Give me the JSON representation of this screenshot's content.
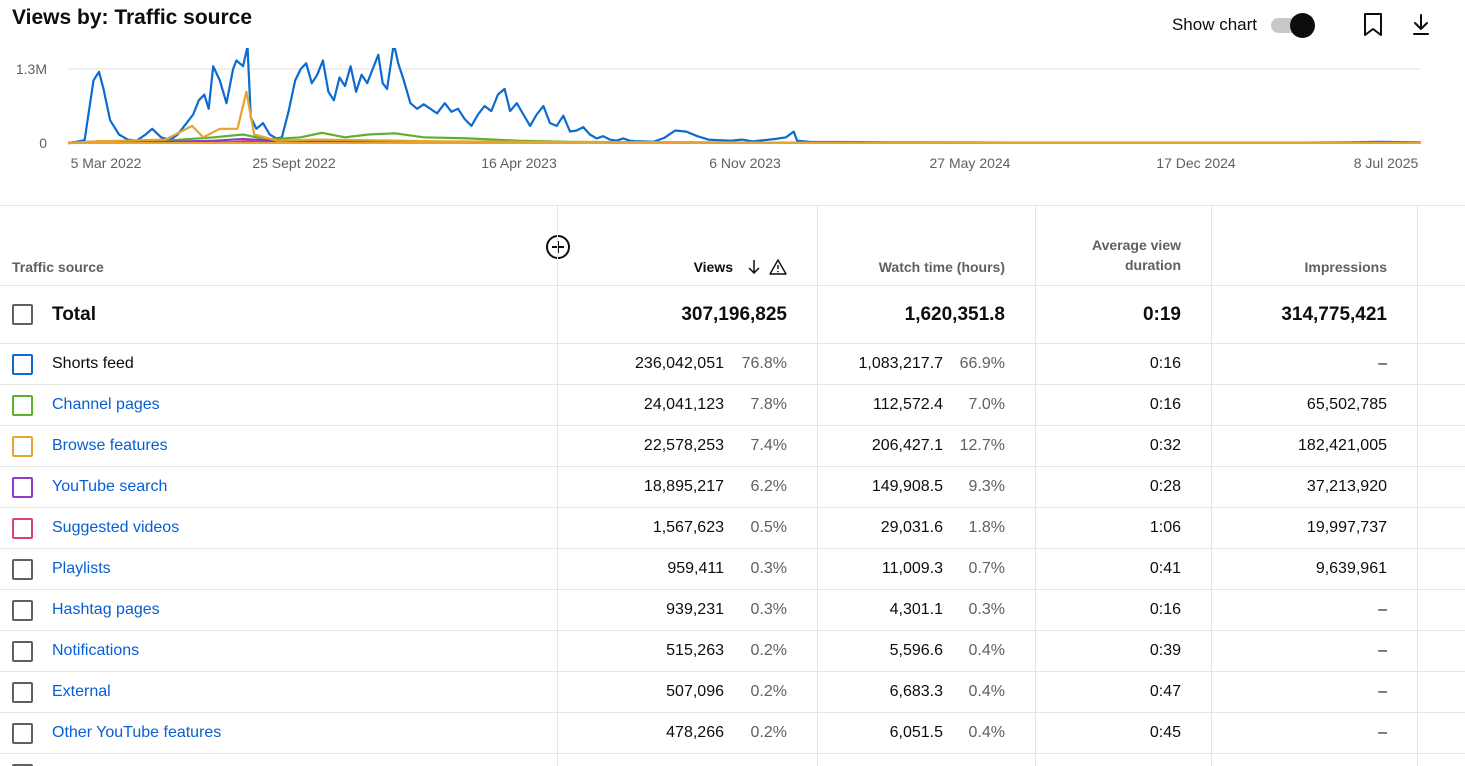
{
  "header": {
    "title": "Views by: Traffic source"
  },
  "toolbar": {
    "show_chart_label": "Show chart",
    "show_chart_on": true,
    "icons": [
      "toggle-switch",
      "bookmark-icon",
      "download-icon"
    ]
  },
  "chart_data": {
    "type": "line",
    "y_tick_labels": [
      "0",
      "1.3M"
    ],
    "x_tick_labels": [
      "5 Mar 2022",
      "25 Sept 2022",
      "16 Apr 2023",
      "6 Nov 2023",
      "27 May 2024",
      "17 Dec 2024",
      "8 Jul 2025"
    ],
    "x_range": [
      "2022-03-05",
      "2025-07-08"
    ],
    "ylim": [
      0,
      1300000
    ],
    "grid": true,
    "legend": "none",
    "series": [
      {
        "name": "Shorts feed",
        "color": "#0b6bd1",
        "points": [
          [
            "2022-03-05",
            0
          ],
          [
            "2022-03-12",
            20000
          ],
          [
            "2022-03-20",
            50000
          ],
          [
            "2022-03-28",
            1100000
          ],
          [
            "2022-04-02",
            1250000
          ],
          [
            "2022-04-06",
            950000
          ],
          [
            "2022-04-12",
            400000
          ],
          [
            "2022-04-20",
            150000
          ],
          [
            "2022-04-28",
            60000
          ],
          [
            "2022-05-06",
            40000
          ],
          [
            "2022-05-14",
            150000
          ],
          [
            "2022-05-20",
            250000
          ],
          [
            "2022-05-28",
            100000
          ],
          [
            "2022-06-05",
            50000
          ],
          [
            "2022-06-12",
            150000
          ],
          [
            "2022-06-20",
            350000
          ],
          [
            "2022-06-26",
            500000
          ],
          [
            "2022-07-01",
            750000
          ],
          [
            "2022-07-06",
            850000
          ],
          [
            "2022-07-10",
            600000
          ],
          [
            "2022-07-14",
            1350000
          ],
          [
            "2022-07-20",
            1100000
          ],
          [
            "2022-07-26",
            700000
          ],
          [
            "2022-08-01",
            1300000
          ],
          [
            "2022-08-04",
            1450000
          ],
          [
            "2022-08-10",
            1350000
          ],
          [
            "2022-08-14",
            1700000
          ],
          [
            "2022-08-17",
            450000
          ],
          [
            "2022-08-22",
            250000
          ],
          [
            "2022-08-28",
            350000
          ],
          [
            "2022-09-03",
            150000
          ],
          [
            "2022-09-09",
            80000
          ],
          [
            "2022-09-14",
            100000
          ],
          [
            "2022-09-20",
            550000
          ],
          [
            "2022-09-26",
            1100000
          ],
          [
            "2022-10-01",
            1300000
          ],
          [
            "2022-10-06",
            1400000
          ],
          [
            "2022-10-11",
            1050000
          ],
          [
            "2022-10-16",
            1200000
          ],
          [
            "2022-10-21",
            1450000
          ],
          [
            "2022-10-26",
            900000
          ],
          [
            "2022-10-31",
            750000
          ],
          [
            "2022-11-05",
            1150000
          ],
          [
            "2022-11-10",
            1000000
          ],
          [
            "2022-11-15",
            1350000
          ],
          [
            "2022-11-20",
            900000
          ],
          [
            "2022-11-25",
            1200000
          ],
          [
            "2022-11-30",
            1050000
          ],
          [
            "2022-12-05",
            1300000
          ],
          [
            "2022-12-10",
            1550000
          ],
          [
            "2022-12-14",
            1050000
          ],
          [
            "2022-12-18",
            950000
          ],
          [
            "2022-12-24",
            1750000
          ],
          [
            "2022-12-28",
            1400000
          ],
          [
            "2023-01-02",
            1100000
          ],
          [
            "2023-01-08",
            700000
          ],
          [
            "2023-01-14",
            600000
          ],
          [
            "2023-01-20",
            680000
          ],
          [
            "2023-01-26",
            600000
          ],
          [
            "2023-02-01",
            520000
          ],
          [
            "2023-02-08",
            700000
          ],
          [
            "2023-02-14",
            550000
          ],
          [
            "2023-02-20",
            600000
          ],
          [
            "2023-02-26",
            420000
          ],
          [
            "2023-03-04",
            300000
          ],
          [
            "2023-03-10",
            500000
          ],
          [
            "2023-03-16",
            650000
          ],
          [
            "2023-03-22",
            560000
          ],
          [
            "2023-03-28",
            850000
          ],
          [
            "2023-04-03",
            950000
          ],
          [
            "2023-04-08",
            560000
          ],
          [
            "2023-04-14",
            700000
          ],
          [
            "2023-04-20",
            500000
          ],
          [
            "2023-04-26",
            300000
          ],
          [
            "2023-05-02",
            500000
          ],
          [
            "2023-05-08",
            650000
          ],
          [
            "2023-05-14",
            350000
          ],
          [
            "2023-05-20",
            300000
          ],
          [
            "2023-05-26",
            480000
          ],
          [
            "2023-06-01",
            200000
          ],
          [
            "2023-06-07",
            220000
          ],
          [
            "2023-06-13",
            280000
          ],
          [
            "2023-06-19",
            150000
          ],
          [
            "2023-06-25",
            80000
          ],
          [
            "2023-07-01",
            120000
          ],
          [
            "2023-07-07",
            60000
          ],
          [
            "2023-07-13",
            40000
          ],
          [
            "2023-07-19",
            80000
          ],
          [
            "2023-07-25",
            40000
          ],
          [
            "2023-07-31",
            30000
          ],
          [
            "2023-08-06",
            30000
          ],
          [
            "2023-08-15",
            20000
          ],
          [
            "2023-08-25",
            90000
          ],
          [
            "2023-09-04",
            220000
          ],
          [
            "2023-09-14",
            200000
          ],
          [
            "2023-09-24",
            120000
          ],
          [
            "2023-10-04",
            60000
          ],
          [
            "2023-10-14",
            50000
          ],
          [
            "2023-10-24",
            40000
          ],
          [
            "2023-11-03",
            60000
          ],
          [
            "2023-11-13",
            30000
          ],
          [
            "2023-11-23",
            50000
          ],
          [
            "2023-12-03",
            70000
          ],
          [
            "2023-12-13",
            100000
          ],
          [
            "2023-12-20",
            200000
          ],
          [
            "2023-12-23",
            40000
          ],
          [
            "2024-01-03",
            20000
          ],
          [
            "2024-02-15",
            15000
          ],
          [
            "2024-04-01",
            10000
          ],
          [
            "2024-06-01",
            8000
          ],
          [
            "2024-09-01",
            6000
          ],
          [
            "2024-12-01",
            5000
          ],
          [
            "2025-03-01",
            5000
          ],
          [
            "2025-05-01",
            10000
          ],
          [
            "2025-06-01",
            20000
          ],
          [
            "2025-07-08",
            10000
          ]
        ]
      },
      {
        "name": "Channel pages",
        "color": "#5eae2f",
        "points": [
          [
            "2022-03-05",
            0
          ],
          [
            "2022-04-01",
            30000
          ],
          [
            "2022-06-01",
            40000
          ],
          [
            "2022-07-15",
            100000
          ],
          [
            "2022-08-10",
            150000
          ],
          [
            "2022-09-01",
            60000
          ],
          [
            "2022-10-01",
            100000
          ],
          [
            "2022-10-20",
            180000
          ],
          [
            "2022-11-10",
            100000
          ],
          [
            "2022-12-01",
            150000
          ],
          [
            "2022-12-25",
            170000
          ],
          [
            "2023-01-20",
            100000
          ],
          [
            "2023-03-01",
            80000
          ],
          [
            "2023-04-15",
            40000
          ],
          [
            "2023-06-01",
            20000
          ],
          [
            "2023-09-01",
            10000
          ],
          [
            "2024-01-01",
            5000
          ],
          [
            "2025-07-08",
            2000
          ]
        ]
      },
      {
        "name": "Browse features",
        "color": "#e8a32e",
        "points": [
          [
            "2022-03-05",
            0
          ],
          [
            "2022-04-01",
            30000
          ],
          [
            "2022-06-01",
            60000
          ],
          [
            "2022-06-25",
            300000
          ],
          [
            "2022-07-05",
            100000
          ],
          [
            "2022-07-20",
            250000
          ],
          [
            "2022-08-05",
            250000
          ],
          [
            "2022-08-13",
            900000
          ],
          [
            "2022-08-20",
            150000
          ],
          [
            "2022-09-10",
            40000
          ],
          [
            "2022-10-15",
            60000
          ],
          [
            "2022-12-01",
            50000
          ],
          [
            "2023-02-01",
            30000
          ],
          [
            "2023-06-01",
            15000
          ],
          [
            "2024-01-01",
            5000
          ],
          [
            "2025-07-08",
            4000
          ]
        ]
      },
      {
        "name": "YouTube search",
        "color": "#8f3bc9",
        "points": [
          [
            "2022-03-05",
            0
          ],
          [
            "2022-04-01",
            25000
          ],
          [
            "2022-06-01",
            20000
          ],
          [
            "2022-07-15",
            40000
          ],
          [
            "2022-08-10",
            70000
          ],
          [
            "2022-09-15",
            30000
          ],
          [
            "2022-11-01",
            30000
          ],
          [
            "2023-01-01",
            20000
          ],
          [
            "2023-06-01",
            10000
          ],
          [
            "2024-01-01",
            5000
          ],
          [
            "2025-07-08",
            3000
          ]
        ]
      },
      {
        "name": "Suggested videos",
        "color": "#e0317b",
        "points": [
          [
            "2022-03-05",
            0
          ],
          [
            "2022-05-01",
            10000
          ],
          [
            "2022-08-01",
            15000
          ],
          [
            "2022-08-14",
            30000
          ],
          [
            "2022-10-01",
            8000
          ],
          [
            "2023-01-01",
            6000
          ],
          [
            "2024-01-01",
            3000
          ],
          [
            "2025-07-08",
            2000
          ]
        ]
      }
    ]
  },
  "table": {
    "headers": {
      "source": "Traffic source",
      "views": "Views",
      "watch_time": "Watch time (hours)",
      "avg_duration_line1": "Average view",
      "avg_duration_line2": "duration",
      "impressions": "Impressions"
    },
    "total": {
      "label": "Total",
      "views": "307,196,825",
      "watch_time": "1,620,351.8",
      "avg_duration": "0:19",
      "impressions": "314,775,421"
    },
    "rows": [
      {
        "source": "Shorts feed",
        "link": false,
        "box_color": "#0b6bd1",
        "views": "236,042,051",
        "views_pct": "76.8%",
        "watch": "1,083,217.7",
        "watch_pct": "66.9%",
        "avg": "0:16",
        "impressions": "–"
      },
      {
        "source": "Channel pages",
        "link": true,
        "box_color": "#5eae2f",
        "views": "24,041,123",
        "views_pct": "7.8%",
        "watch": "112,572.4",
        "watch_pct": "7.0%",
        "avg": "0:16",
        "impressions": "65,502,785"
      },
      {
        "source": "Browse features",
        "link": true,
        "box_color": "#e8a32e",
        "views": "22,578,253",
        "views_pct": "7.4%",
        "watch": "206,427.1",
        "watch_pct": "12.7%",
        "avg": "0:32",
        "impressions": "182,421,005"
      },
      {
        "source": "YouTube search",
        "link": true,
        "box_color": "#8f3bc9",
        "views": "18,895,217",
        "views_pct": "6.2%",
        "watch": "149,908.5",
        "watch_pct": "9.3%",
        "avg": "0:28",
        "impressions": "37,213,920"
      },
      {
        "source": "Suggested videos",
        "link": true,
        "box_color": "#d8436f",
        "views": "1,567,623",
        "views_pct": "0.5%",
        "watch": "29,031.6",
        "watch_pct": "1.8%",
        "avg": "1:06",
        "impressions": "19,997,737"
      },
      {
        "source": "Playlists",
        "link": true,
        "box_color": "#606060",
        "views": "959,411",
        "views_pct": "0.3%",
        "watch": "11,009.3",
        "watch_pct": "0.7%",
        "avg": "0:41",
        "impressions": "9,639,961"
      },
      {
        "source": "Hashtag pages",
        "link": true,
        "box_color": "#606060",
        "views": "939,231",
        "views_pct": "0.3%",
        "watch": "4,301.1",
        "watch_pct": "0.3%",
        "avg": "0:16",
        "impressions": "–"
      },
      {
        "source": "Notifications",
        "link": true,
        "box_color": "#606060",
        "views": "515,263",
        "views_pct": "0.2%",
        "watch": "5,596.6",
        "watch_pct": "0.4%",
        "avg": "0:39",
        "impressions": "–"
      },
      {
        "source": "External",
        "link": true,
        "box_color": "#606060",
        "views": "507,096",
        "views_pct": "0.2%",
        "watch": "6,683.3",
        "watch_pct": "0.4%",
        "avg": "0:47",
        "impressions": "–"
      },
      {
        "source": "Other YouTube features",
        "link": true,
        "box_color": "#606060",
        "views": "478,266",
        "views_pct": "0.2%",
        "watch": "6,051.5",
        "watch_pct": "0.4%",
        "avg": "0:45",
        "impressions": "–"
      }
    ]
  }
}
